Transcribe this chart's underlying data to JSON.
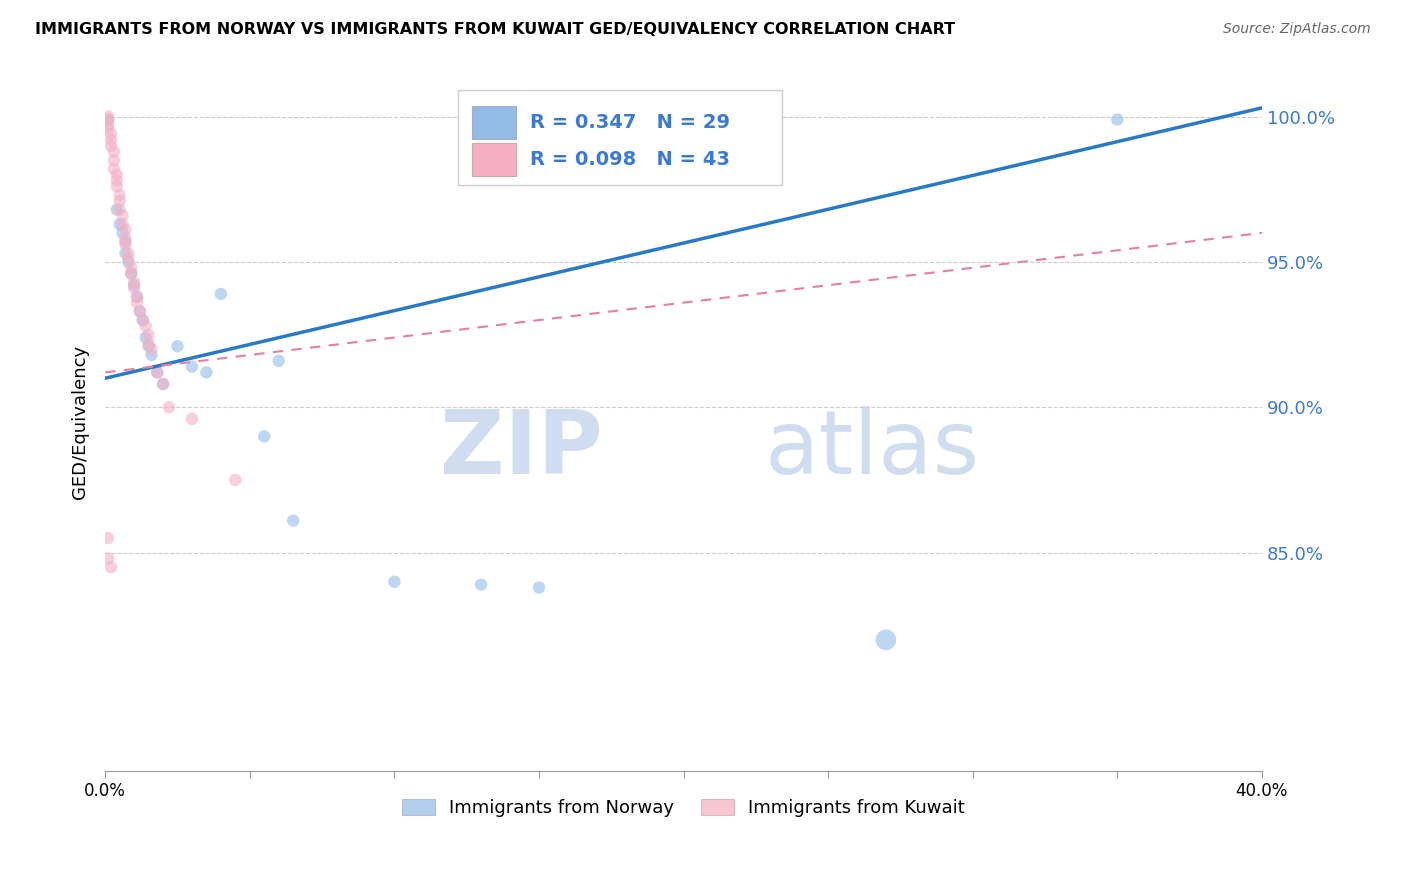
{
  "title": "IMMIGRANTS FROM NORWAY VS IMMIGRANTS FROM KUWAIT GED/EQUIVALENCY CORRELATION CHART",
  "source": "Source: ZipAtlas.com",
  "ylabel": "GED/Equivalency",
  "x_min": 0.0,
  "x_max": 0.4,
  "y_min": 0.775,
  "y_max": 1.015,
  "yticks": [
    0.85,
    0.9,
    0.95,
    1.0
  ],
  "ytick_labels": [
    "85.0%",
    "90.0%",
    "95.0%",
    "100.0%"
  ],
  "xticks": [
    0.0,
    0.05,
    0.1,
    0.15,
    0.2,
    0.25,
    0.3,
    0.35,
    0.4
  ],
  "xtick_labels": [
    "0.0%",
    "",
    "",
    "",
    "",
    "",
    "",
    "",
    "40.0%"
  ],
  "norway_color": "#92bce8",
  "kuwait_color": "#f4afc4",
  "norway_label": "Immigrants from Norway",
  "kuwait_label": "Immigrants from Kuwait",
  "norway_R": 0.347,
  "norway_N": 29,
  "kuwait_R": 0.098,
  "kuwait_N": 43,
  "norway_line_color": "#2979c9",
  "kuwait_line_color": "#e87fa0",
  "watermark_zip": "ZIP",
  "watermark_atlas": "atlas",
  "norway_line_x": [
    0.0,
    0.4
  ],
  "norway_line_y": [
    0.91,
    1.003
  ],
  "kuwait_line_x": [
    0.0,
    0.4
  ],
  "kuwait_line_y": [
    0.912,
    0.96
  ],
  "norway_scatter_x": [
    0.001,
    0.004,
    0.005,
    0.006,
    0.007,
    0.007,
    0.008,
    0.009,
    0.01,
    0.011,
    0.012,
    0.013,
    0.014,
    0.015,
    0.016,
    0.018,
    0.02,
    0.025,
    0.03,
    0.035,
    0.04,
    0.055,
    0.06,
    0.065,
    0.1,
    0.13,
    0.15,
    0.27,
    0.35
  ],
  "norway_scatter_y": [
    0.999,
    0.968,
    0.963,
    0.96,
    0.957,
    0.953,
    0.95,
    0.946,
    0.942,
    0.938,
    0.933,
    0.93,
    0.924,
    0.921,
    0.918,
    0.912,
    0.908,
    0.921,
    0.914,
    0.912,
    0.939,
    0.89,
    0.916,
    0.861,
    0.84,
    0.839,
    0.838,
    0.82,
    0.999
  ],
  "norway_scatter_sizes": [
    80,
    80,
    80,
    80,
    80,
    80,
    80,
    80,
    80,
    80,
    80,
    80,
    80,
    80,
    80,
    80,
    80,
    80,
    80,
    80,
    80,
    80,
    80,
    80,
    80,
    80,
    80,
    220,
    80
  ],
  "kuwait_scatter_x": [
    0.001,
    0.001,
    0.001,
    0.001,
    0.002,
    0.002,
    0.002,
    0.003,
    0.003,
    0.003,
    0.004,
    0.004,
    0.004,
    0.005,
    0.005,
    0.005,
    0.006,
    0.006,
    0.007,
    0.007,
    0.007,
    0.008,
    0.008,
    0.009,
    0.009,
    0.01,
    0.01,
    0.011,
    0.011,
    0.012,
    0.013,
    0.014,
    0.015,
    0.015,
    0.016,
    0.018,
    0.02,
    0.022,
    0.03,
    0.045,
    0.001,
    0.001,
    0.002
  ],
  "kuwait_scatter_y": [
    1.0,
    0.999,
    0.997,
    0.996,
    0.994,
    0.992,
    0.99,
    0.988,
    0.985,
    0.982,
    0.98,
    0.978,
    0.976,
    0.973,
    0.971,
    0.968,
    0.966,
    0.963,
    0.961,
    0.958,
    0.956,
    0.953,
    0.951,
    0.948,
    0.946,
    0.943,
    0.941,
    0.938,
    0.936,
    0.933,
    0.93,
    0.928,
    0.925,
    0.922,
    0.92,
    0.912,
    0.908,
    0.9,
    0.896,
    0.875,
    0.855,
    0.848,
    0.845
  ],
  "kuwait_scatter_sizes": [
    80,
    80,
    80,
    80,
    80,
    80,
    80,
    80,
    80,
    80,
    80,
    80,
    80,
    80,
    80,
    80,
    80,
    80,
    80,
    80,
    80,
    80,
    80,
    80,
    80,
    80,
    80,
    80,
    80,
    80,
    80,
    80,
    80,
    80,
    80,
    80,
    80,
    80,
    80,
    80,
    80,
    80,
    80
  ]
}
